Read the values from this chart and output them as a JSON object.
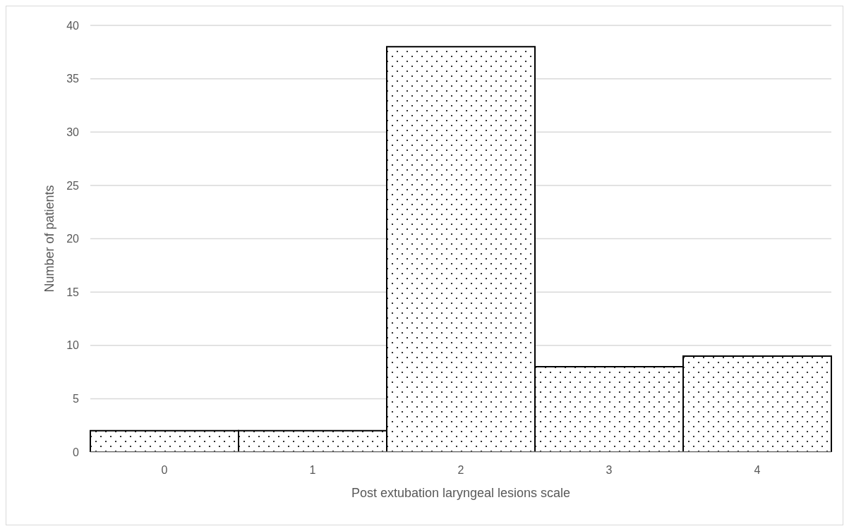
{
  "chart_data": {
    "type": "bar",
    "xlabel": "Post extubation laryngeal lesions scale",
    "ylabel": "Number of patients",
    "categories": [
      "0",
      "1",
      "2",
      "3",
      "4"
    ],
    "values": [
      2,
      2,
      38,
      8,
      9
    ],
    "color": "#000000",
    "ylim": [
      0,
      40
    ],
    "yticks": [
      0,
      5,
      10,
      15,
      20,
      25,
      30,
      35,
      40
    ],
    "grid": "y"
  }
}
